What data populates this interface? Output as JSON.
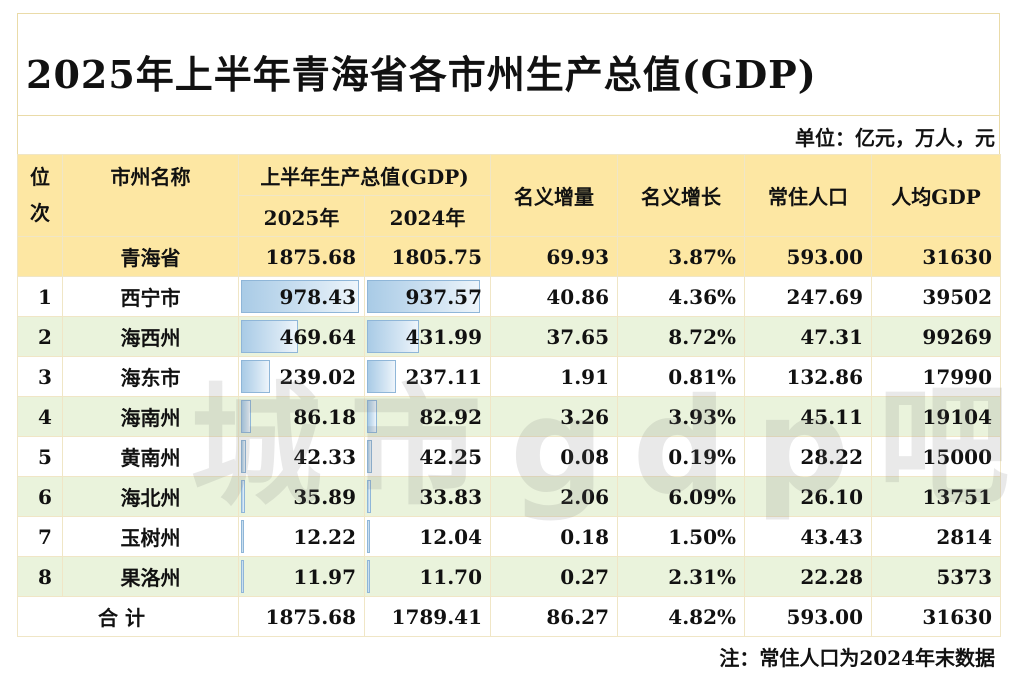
{
  "title": "2025年上半年青海省各市州生产总值(GDP)",
  "unit": "单位：亿元，万人，元",
  "headers": {
    "rank": "位次",
    "name": "市州名称",
    "gdp_group": "上半年生产总值(GDP)",
    "y2025": "2025年",
    "y2024": "2024年",
    "nominal_increase": "名义增量",
    "nominal_growth": "名义增长",
    "population": "常住人口",
    "per_capita": "人均GDP"
  },
  "province": {
    "name": "青海省",
    "gdp2025": "1875.68",
    "gdp2024": "1805.75",
    "increase": "69.93",
    "growth": "3.87%",
    "population": "593.00",
    "per_capita": "31630"
  },
  "rows": [
    {
      "rank": "1",
      "name": "西宁市",
      "gdp2025": "978.43",
      "gdp2024": "937.57",
      "increase": "40.86",
      "growth": "4.36%",
      "population": "247.69",
      "per_capita": "39502",
      "bar2025": 978.43,
      "bar2024": 937.57
    },
    {
      "rank": "2",
      "name": "海西州",
      "gdp2025": "469.64",
      "gdp2024": "431.99",
      "increase": "37.65",
      "growth": "8.72%",
      "population": "47.31",
      "per_capita": "99269",
      "bar2025": 469.64,
      "bar2024": 431.99
    },
    {
      "rank": "3",
      "name": "海东市",
      "gdp2025": "239.02",
      "gdp2024": "237.11",
      "increase": "1.91",
      "growth": "0.81%",
      "population": "132.86",
      "per_capita": "17990",
      "bar2025": 239.02,
      "bar2024": 237.11
    },
    {
      "rank": "4",
      "name": "海南州",
      "gdp2025": "86.18",
      "gdp2024": "82.92",
      "increase": "3.26",
      "growth": "3.93%",
      "population": "45.11",
      "per_capita": "19104",
      "bar2025": 86.18,
      "bar2024": 82.92
    },
    {
      "rank": "5",
      "name": "黄南州",
      "gdp2025": "42.33",
      "gdp2024": "42.25",
      "increase": "0.08",
      "growth": "0.19%",
      "population": "28.22",
      "per_capita": "15000",
      "bar2025": 42.33,
      "bar2024": 42.25
    },
    {
      "rank": "6",
      "name": "海北州",
      "gdp2025": "35.89",
      "gdp2024": "33.83",
      "increase": "2.06",
      "growth": "6.09%",
      "population": "26.10",
      "per_capita": "13751",
      "bar2025": 35.89,
      "bar2024": 33.83
    },
    {
      "rank": "7",
      "name": "玉树州",
      "gdp2025": "12.22",
      "gdp2024": "12.04",
      "increase": "0.18",
      "growth": "1.50%",
      "population": "43.43",
      "per_capita": "2814",
      "bar2025": 12.22,
      "bar2024": 12.04
    },
    {
      "rank": "8",
      "name": "果洛州",
      "gdp2025": "11.97",
      "gdp2024": "11.70",
      "increase": "0.27",
      "growth": "2.31%",
      "population": "22.28",
      "per_capita": "5373",
      "bar2025": 11.97,
      "bar2024": 11.7
    }
  ],
  "total": {
    "label": "合 计",
    "gdp2025": "1875.68",
    "gdp2024": "1789.41",
    "increase": "86.27",
    "growth": "4.82%",
    "population": "593.00",
    "per_capita": "31630"
  },
  "bar_max": 978.43,
  "note": "注：常住人口为2024年末数据",
  "watermark": "城市gdp吧",
  "colors": {
    "header_bg": "#fde7a3",
    "stripe": "#eaf3dc",
    "bar": "#a9cbe6"
  }
}
